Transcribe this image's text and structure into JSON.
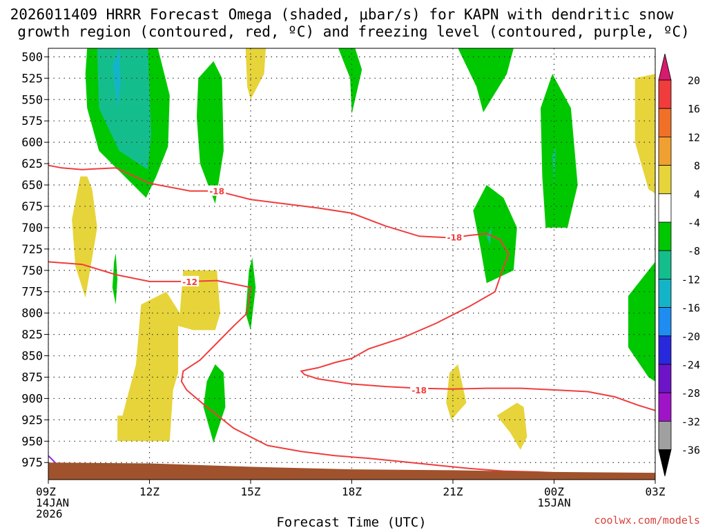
{
  "chart_data": {
    "type": "contour",
    "title_line1": "2026011409 HRRR Forecast Omega (shaded, μbar/s) for KAPN with dendritic snow",
    "title_line2": "growth region (contoured, red, ºC) and freezing level (contoured, purple, ºC)",
    "xlabel": "Forecast Time (UTC)",
    "x_range": [
      0,
      18
    ],
    "y_range": [
      490,
      995
    ],
    "y_ticks": [
      500,
      525,
      550,
      575,
      600,
      625,
      650,
      675,
      700,
      725,
      750,
      775,
      800,
      825,
      850,
      875,
      900,
      925,
      950,
      975
    ],
    "x_ticks": [
      {
        "x": 0,
        "line1": "09Z",
        "line2": "14JAN",
        "line3": "2026"
      },
      {
        "x": 3,
        "line1": "12Z",
        "line2": "",
        "line3": ""
      },
      {
        "x": 6,
        "line1": "15Z",
        "line2": "",
        "line3": ""
      },
      {
        "x": 9,
        "line1": "18Z",
        "line2": "",
        "line3": ""
      },
      {
        "x": 12,
        "line1": "21Z",
        "line2": "",
        "line3": ""
      },
      {
        "x": 15,
        "line1": "00Z",
        "line2": "15JAN",
        "line3": ""
      },
      {
        "x": 18,
        "line1": "03Z",
        "line2": "",
        "line3": ""
      }
    ],
    "colorbar": {
      "labels": [
        "20",
        "16",
        "12",
        "8",
        "4",
        "-4",
        "-8",
        "-12",
        "-16",
        "-20",
        "-24",
        "-28",
        "-32",
        "-36"
      ],
      "colors": [
        "#d61a6e",
        "#f03c3c",
        "#f07028",
        "#f0a030",
        "#e6d43a",
        "#ffffff",
        "#00c800",
        "#14be8c",
        "#14b4c8",
        "#1e8cf0",
        "#2828dc",
        "#6e14c8",
        "#a014c8",
        "#a0a0a0",
        "#000000"
      ]
    },
    "omega_shading": [
      {
        "level": "-4 to -8",
        "color": "#00c800",
        "points": [
          [
            1.15,
            490
          ],
          [
            1.1,
            520
          ],
          [
            1.15,
            560
          ],
          [
            1.5,
            610
          ],
          [
            2.9,
            665
          ],
          [
            3.2,
            640
          ],
          [
            3.55,
            605
          ],
          [
            3.6,
            545
          ],
          [
            3.25,
            490
          ]
        ]
      },
      {
        "level": "-8 to -12",
        "color": "#14be8c",
        "points": [
          [
            1.45,
            490
          ],
          [
            1.5,
            560
          ],
          [
            2.1,
            610
          ],
          [
            2.95,
            632
          ],
          [
            3.05,
            590
          ],
          [
            2.95,
            490
          ]
        ]
      },
      {
        "level": "-12 to -16",
        "color": "#14b4c8",
        "points": [
          [
            1.9,
            510
          ],
          [
            2.05,
            560
          ],
          [
            2.15,
            530
          ],
          [
            2.1,
            490
          ]
        ]
      },
      {
        "level": "-4 to -8",
        "color": "#00c800",
        "points": [
          [
            4.45,
            525
          ],
          [
            4.4,
            570
          ],
          [
            4.5,
            625
          ],
          [
            4.95,
            672
          ],
          [
            5.2,
            610
          ],
          [
            5.15,
            525
          ],
          [
            4.9,
            505
          ]
        ]
      },
      {
        "level": "-4 to -8",
        "color": "#00c800",
        "points": [
          [
            8.6,
            490
          ],
          [
            8.95,
            525
          ],
          [
            9.0,
            567
          ],
          [
            9.3,
            515
          ],
          [
            9.1,
            490
          ]
        ]
      },
      {
        "level": "-4 to -8",
        "color": "#00c800",
        "points": [
          [
            12.15,
            490
          ],
          [
            12.7,
            535
          ],
          [
            12.9,
            565
          ],
          [
            13.6,
            520
          ],
          [
            13.8,
            490
          ]
        ]
      },
      {
        "level": "-4 to -8",
        "color": "#00c800",
        "points": [
          [
            14.6,
            560
          ],
          [
            14.65,
            640
          ],
          [
            14.75,
            700
          ],
          [
            15.4,
            700
          ],
          [
            15.7,
            650
          ],
          [
            15.5,
            560
          ],
          [
            14.95,
            520
          ]
        ]
      },
      {
        "level": "-8 to -12",
        "color": "#14be8c",
        "points": [
          [
            14.95,
            615
          ],
          [
            15.0,
            650
          ],
          [
            15.05,
            605
          ]
        ]
      },
      {
        "level": "-4 to -8",
        "color": "#00c800",
        "points": [
          [
            12.6,
            680
          ],
          [
            12.8,
            720
          ],
          [
            13.0,
            765
          ],
          [
            13.8,
            750
          ],
          [
            13.9,
            700
          ],
          [
            13.5,
            665
          ],
          [
            13.0,
            650
          ]
        ]
      },
      {
        "level": "-8 to -12",
        "color": "#14be8c",
        "points": [
          [
            13.0,
            710
          ],
          [
            13.1,
            720
          ],
          [
            13.15,
            700
          ]
        ]
      },
      {
        "level": "-4 to -8",
        "color": "#00c800",
        "points": [
          [
            5.95,
            750
          ],
          [
            5.85,
            800
          ],
          [
            6.0,
            820
          ],
          [
            6.15,
            770
          ],
          [
            6.05,
            735
          ]
        ]
      },
      {
        "level": "-4 to -8",
        "color": "#00c800",
        "points": [
          [
            1.95,
            740
          ],
          [
            1.9,
            770
          ],
          [
            2.0,
            790
          ],
          [
            2.05,
            760
          ],
          [
            2.0,
            730
          ]
        ]
      },
      {
        "level": "-4 to -8",
        "color": "#00c800",
        "points": [
          [
            4.7,
            880
          ],
          [
            4.6,
            910
          ],
          [
            4.9,
            952
          ],
          [
            5.25,
            910
          ],
          [
            5.2,
            870
          ],
          [
            4.95,
            860
          ]
        ]
      },
      {
        "level": "-4 to -8",
        "color": "#00c800",
        "points": [
          [
            18.0,
            740
          ],
          [
            17.2,
            780
          ],
          [
            17.2,
            840
          ],
          [
            17.8,
            875
          ],
          [
            18.0,
            880
          ]
        ]
      },
      {
        "level": "4 to 8",
        "color": "#e6d43a",
        "points": [
          [
            5.85,
            490
          ],
          [
            5.9,
            535
          ],
          [
            6.0,
            550
          ],
          [
            6.4,
            520
          ],
          [
            6.45,
            490
          ]
        ]
      },
      {
        "level": "4 to 8",
        "color": "#e6d43a",
        "points": [
          [
            17.4,
            525
          ],
          [
            17.4,
            600
          ],
          [
            17.8,
            655
          ],
          [
            18.0,
            660
          ],
          [
            18.0,
            520
          ]
        ]
      },
      {
        "level": "4 to 8",
        "color": "#e6d43a",
        "points": [
          [
            0.95,
            640
          ],
          [
            0.7,
            690
          ],
          [
            0.8,
            745
          ],
          [
            1.1,
            782
          ],
          [
            1.45,
            700
          ],
          [
            1.3,
            655
          ],
          [
            1.15,
            640
          ]
        ]
      },
      {
        "level": "4 to 8",
        "color": "#e6d43a",
        "points": [
          [
            4.0,
            750
          ],
          [
            3.9,
            800
          ],
          [
            3.5,
            775
          ],
          [
            2.75,
            790
          ],
          [
            2.6,
            860
          ],
          [
            2.2,
            920
          ],
          [
            2.05,
            920
          ],
          [
            2.05,
            950
          ],
          [
            3.6,
            950
          ],
          [
            3.7,
            890
          ],
          [
            3.85,
            870
          ],
          [
            3.85,
            815
          ],
          [
            4.3,
            820
          ],
          [
            4.95,
            820
          ],
          [
            5.1,
            800
          ],
          [
            5.0,
            750
          ]
        ]
      },
      {
        "level": "4 to 8",
        "color": "#e6d43a",
        "points": [
          [
            11.9,
            870
          ],
          [
            11.8,
            905
          ],
          [
            11.95,
            925
          ],
          [
            12.4,
            905
          ],
          [
            12.15,
            860
          ]
        ]
      },
      {
        "level": "4 to 8",
        "color": "#e6d43a",
        "points": [
          [
            13.3,
            920
          ],
          [
            13.7,
            940
          ],
          [
            14.0,
            960
          ],
          [
            14.2,
            945
          ],
          [
            14.1,
            910
          ],
          [
            13.9,
            905
          ]
        ]
      }
    ],
    "dgz_contours": [
      {
        "label": "-18",
        "label_x": 5.0,
        "label_y": 657,
        "points": [
          [
            0,
            627
          ],
          [
            0.4,
            630
          ],
          [
            1.0,
            632
          ],
          [
            2.0,
            630
          ],
          [
            3.0,
            648
          ],
          [
            4.2,
            657
          ],
          [
            5.0,
            657
          ],
          [
            6.0,
            667
          ],
          [
            7.0,
            672
          ],
          [
            8.0,
            677
          ],
          [
            9.0,
            683
          ],
          [
            10.0,
            698
          ],
          [
            11.0,
            710
          ],
          [
            11.5,
            711
          ],
          [
            12.0,
            712
          ],
          [
            12.5,
            709
          ],
          [
            13.0,
            707
          ],
          [
            13.4,
            714
          ],
          [
            13.65,
            731
          ],
          [
            13.5,
            746
          ],
          [
            13.25,
            775
          ],
          [
            12.5,
            792
          ],
          [
            11.5,
            812
          ],
          [
            10.5,
            829
          ],
          [
            9.5,
            842
          ],
          [
            9.0,
            853
          ],
          [
            8.5,
            858
          ],
          [
            8.0,
            864
          ],
          [
            7.5,
            868
          ],
          [
            7.6,
            872
          ],
          [
            8.0,
            877
          ],
          [
            9.0,
            883
          ],
          [
            10.0,
            886
          ],
          [
            11.0,
            888
          ],
          [
            12.0,
            889
          ],
          [
            13.0,
            888
          ],
          [
            14.0,
            888
          ],
          [
            15.0,
            890
          ],
          [
            16.0,
            892
          ],
          [
            16.8,
            898
          ],
          [
            17.5,
            908
          ],
          [
            18.0,
            914
          ]
        ]
      },
      {
        "label": "-12",
        "label_x": 4.2,
        "label_y": 763,
        "points": [
          [
            0,
            740
          ],
          [
            1.0,
            743
          ],
          [
            2.0,
            755
          ],
          [
            3.0,
            763
          ],
          [
            4.2,
            763
          ],
          [
            5.0,
            762
          ],
          [
            6.0,
            770
          ],
          [
            5.9,
            800
          ],
          [
            5.5,
            815
          ],
          [
            5.0,
            835
          ],
          [
            4.5,
            855
          ],
          [
            4.0,
            868
          ],
          [
            3.95,
            880
          ],
          [
            4.1,
            890
          ],
          [
            4.7,
            910
          ],
          [
            5.5,
            935
          ],
          [
            6.5,
            955
          ],
          [
            7.5,
            962
          ],
          [
            8.5,
            967
          ],
          [
            9.5,
            970
          ],
          [
            10.5,
            974
          ],
          [
            11.5,
            978
          ],
          [
            12.5,
            982
          ],
          [
            13.5,
            985
          ],
          [
            14.5,
            986
          ],
          [
            15.0,
            987
          ]
        ]
      },
      {
        "label": "-18",
        "label_x": 11.0,
        "label_y": 890,
        "points": []
      },
      {
        "label": "-18",
        "label_x": 12.05,
        "label_y": 711,
        "points": []
      }
    ],
    "freezing_level": {
      "points": [
        [
          0,
          967
        ],
        [
          0.25,
          977
        ]
      ]
    },
    "terrain": {
      "color": "#a0522d",
      "points": [
        [
          0,
          975
        ],
        [
          3.0,
          976
        ],
        [
          6.0,
          980
        ],
        [
          9.0,
          983
        ],
        [
          12.0,
          984
        ],
        [
          15.0,
          986
        ],
        [
          18.0,
          987
        ],
        [
          18.0,
          995
        ],
        [
          0,
          995
        ]
      ]
    }
  },
  "credit": "coolwx.com/models"
}
